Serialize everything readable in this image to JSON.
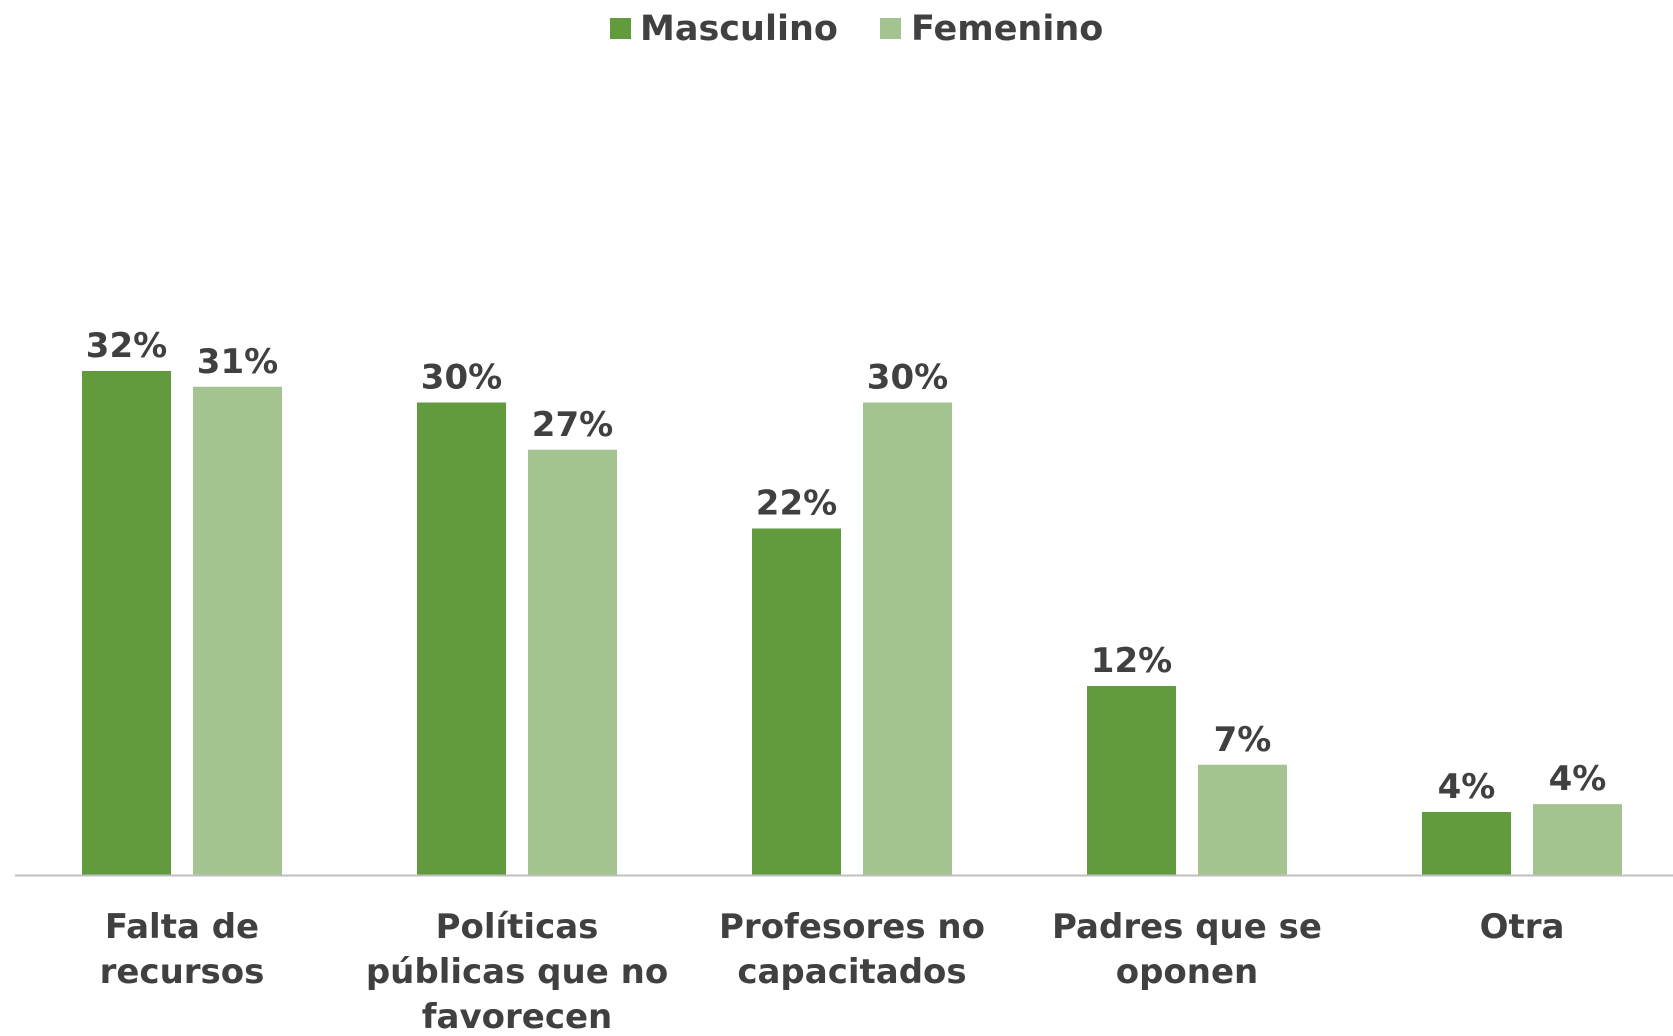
{
  "chart_data": {
    "type": "bar",
    "title": "",
    "xlabel": "",
    "ylabel": "",
    "ylim": [
      0,
      0.32
    ],
    "grid": false,
    "legend_position": "top-center",
    "categories": [
      [
        "Falta de",
        "recursos"
      ],
      [
        "Políticas",
        "públicas que no",
        "favorecen"
      ],
      [
        "Profesores no",
        "capacitados"
      ],
      [
        "Padres que se",
        "oponen"
      ],
      [
        "Otra"
      ]
    ],
    "series": [
      {
        "name": "Masculino",
        "color": "#629A3E",
        "values": [
          0.32,
          0.3,
          0.22,
          0.12,
          0.04
        ],
        "labels": [
          "32%",
          "30%",
          "22%",
          "12%",
          "4%"
        ]
      },
      {
        "name": "Femenino",
        "color": "#A3C491",
        "values": [
          0.31,
          0.27,
          0.3,
          0.07,
          0.045
        ],
        "labels": [
          "31%",
          "27%",
          "30%",
          "7%",
          "4%"
        ]
      }
    ],
    "text_color": "#404040",
    "axis_color": "#BFBFBF"
  }
}
